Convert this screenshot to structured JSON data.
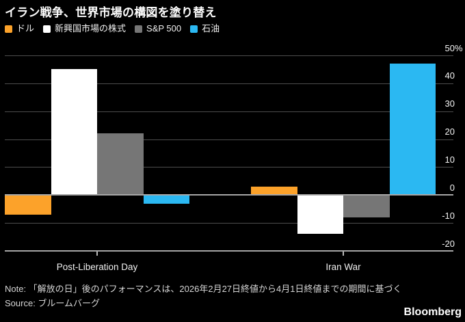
{
  "title": "イラン戦争、世界市場の構図を塗り替え",
  "colors": {
    "background": "#000000",
    "gridline": "#4D4D4D",
    "baseline": "#A6A6A6",
    "text": "#F2F2F2",
    "muted_text": "#D6D6D6"
  },
  "chart_data": {
    "type": "bar",
    "categories": [
      "Post-Liberation Day",
      "Iran War"
    ],
    "series": [
      {
        "name": "ドル",
        "color": "#FCA22A",
        "values": [
          -7,
          3
        ]
      },
      {
        "name": "新興国市場の株式",
        "color": "#FFFFFF",
        "values": [
          45,
          -14
        ]
      },
      {
        "name": "S&P 500",
        "color": "#767676",
        "values": [
          22,
          -8
        ]
      },
      {
        "name": "石油",
        "color": "#2BB8F2",
        "values": [
          -3,
          47
        ]
      }
    ],
    "ylim": [
      -20,
      50
    ],
    "yticks": [
      50,
      40,
      30,
      20,
      10,
      0,
      -10,
      -20
    ],
    "ytick_top_suffix": "%",
    "grid": "horizontal",
    "legend_position": "top-left"
  },
  "footer": {
    "note": "Note: 「解放の日」後のパフォーマンスは、2026年2月27日終値から4月1日終値までの期間に基づく",
    "source": "Source: ブルームバーグ",
    "brand": "Bloomberg"
  }
}
